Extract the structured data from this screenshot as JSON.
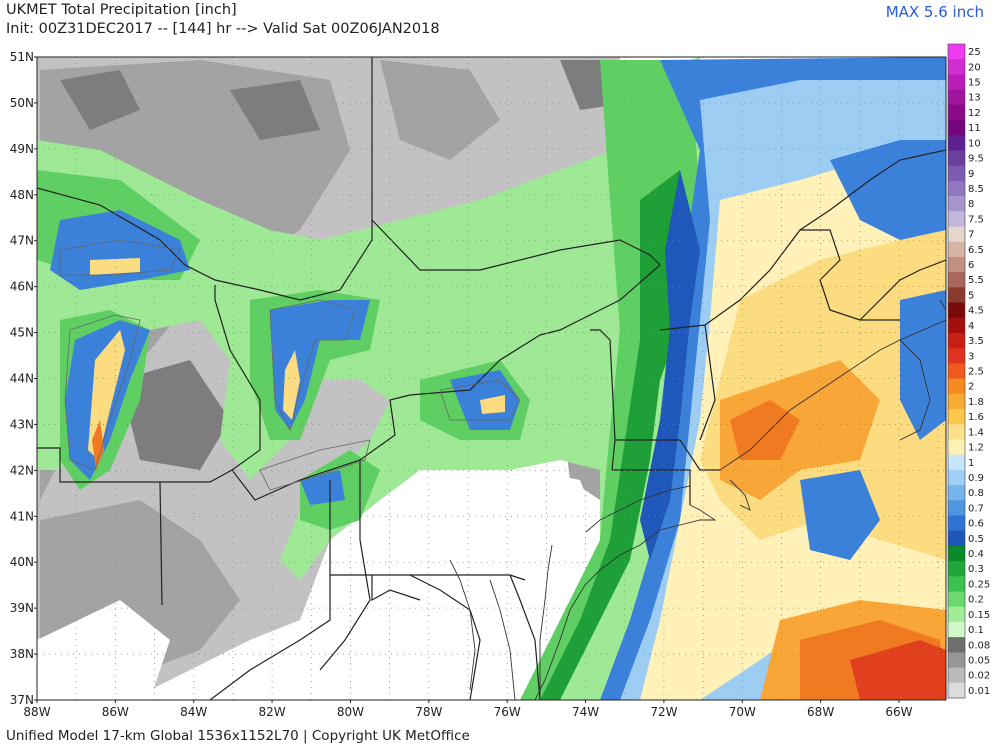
{
  "header": {
    "title": "UKMET Total Precipitation [inch]",
    "init_line": "Init: 00Z31DEC2017 -- [144] hr --> Valid Sat 00Z06JAN2018",
    "max_label": "MAX 5.6 inch"
  },
  "footer": {
    "credit": "Unified Model 17-km Global 1536x1152L70 | Copyright UK MetOffice"
  },
  "map": {
    "lat_labels": [
      "51N",
      "50N",
      "49N",
      "48N",
      "47N",
      "46N",
      "45N",
      "44N",
      "43N",
      "42N",
      "41N",
      "40N",
      "39N",
      "38N",
      "37N"
    ],
    "lon_labels": [
      "88W",
      "86W",
      "84W",
      "82W",
      "80W",
      "78W",
      "76W",
      "74W",
      "72W",
      "70W",
      "68W",
      "66W"
    ],
    "lat_range": [
      37,
      51
    ],
    "lon_range": [
      -88,
      -64.8
    ]
  },
  "colorbar": {
    "levels": [
      {
        "label": "25",
        "color": "#f03cf0"
      },
      {
        "label": "20",
        "color": "#d22dd2"
      },
      {
        "label": "15",
        "color": "#b91eb9"
      },
      {
        "label": "13",
        "color": "#a0149f"
      },
      {
        "label": "12",
        "color": "#8a0a8a"
      },
      {
        "label": "11",
        "color": "#74057a"
      },
      {
        "label": "10",
        "color": "#5f1f8f"
      },
      {
        "label": "9.5",
        "color": "#6a3f9e"
      },
      {
        "label": "9",
        "color": "#7c5bb0"
      },
      {
        "label": "8.5",
        "color": "#8f78c0"
      },
      {
        "label": "8",
        "color": "#a796cd"
      },
      {
        "label": "7.5",
        "color": "#c3b6dc"
      },
      {
        "label": "7",
        "color": "#e6d6d0"
      },
      {
        "label": "6.5",
        "color": "#d7b3a6"
      },
      {
        "label": "6",
        "color": "#c48f80"
      },
      {
        "label": "5.5",
        "color": "#a8675a"
      },
      {
        "label": "5",
        "color": "#8a3a2f"
      },
      {
        "label": "4.5",
        "color": "#7a0a0a"
      },
      {
        "label": "4",
        "color": "#a30f0f"
      },
      {
        "label": "3.5",
        "color": "#c81e14"
      },
      {
        "label": "3",
        "color": "#e0321e"
      },
      {
        "label": "2.5",
        "color": "#f05a1e"
      },
      {
        "label": "2",
        "color": "#f78a23"
      },
      {
        "label": "1.8",
        "color": "#f9aa32"
      },
      {
        "label": "1.6",
        "color": "#fcc74a"
      },
      {
        "label": "1.4",
        "color": "#fde08a"
      },
      {
        "label": "1.2",
        "color": "#fff0b4"
      },
      {
        "label": "1",
        "color": "#c8e6fa"
      },
      {
        "label": "0.9",
        "color": "#a0d0f5"
      },
      {
        "label": "0.8",
        "color": "#78b4ec"
      },
      {
        "label": "0.7",
        "color": "#5095e0"
      },
      {
        "label": "0.6",
        "color": "#2f74d4"
      },
      {
        "label": "0.5",
        "color": "#1e56b8"
      },
      {
        "label": "0.4",
        "color": "#0a8a2a"
      },
      {
        "label": "0.3",
        "color": "#1ea83a"
      },
      {
        "label": "0.25",
        "color": "#3cc050"
      },
      {
        "label": "0.2",
        "color": "#6cd870"
      },
      {
        "label": "0.15",
        "color": "#a0ec98"
      },
      {
        "label": "0.1",
        "color": "#d0f8c8"
      },
      {
        "label": "0.08",
        "color": "#6e6e6e"
      },
      {
        "label": "0.05",
        "color": "#969696"
      },
      {
        "label": "0.02",
        "color": "#bababa"
      },
      {
        "label": "0.01",
        "color": "#dcdcdc"
      }
    ]
  },
  "colors": {
    "trace": "#d4d4d4",
    "light_gray": "#c2c2c2",
    "mid_gray": "#a3a3a3",
    "dark_gray": "#7d7d7d",
    "light_green": "#9fe895",
    "green": "#5fcf63",
    "dark_green": "#1e9f37",
    "blue_dark": "#1f57ba",
    "blue": "#3b80d9",
    "blue_light": "#9dcdf3",
    "cream": "#fff1b8",
    "yellow": "#fcdc80",
    "orange": "#f8a638",
    "orange_dark": "#f07a22",
    "red": "#e0401e",
    "red_dark": "#b3160f",
    "border": "#222222",
    "coast": "#333333",
    "max_text": "#2a5bd7"
  }
}
